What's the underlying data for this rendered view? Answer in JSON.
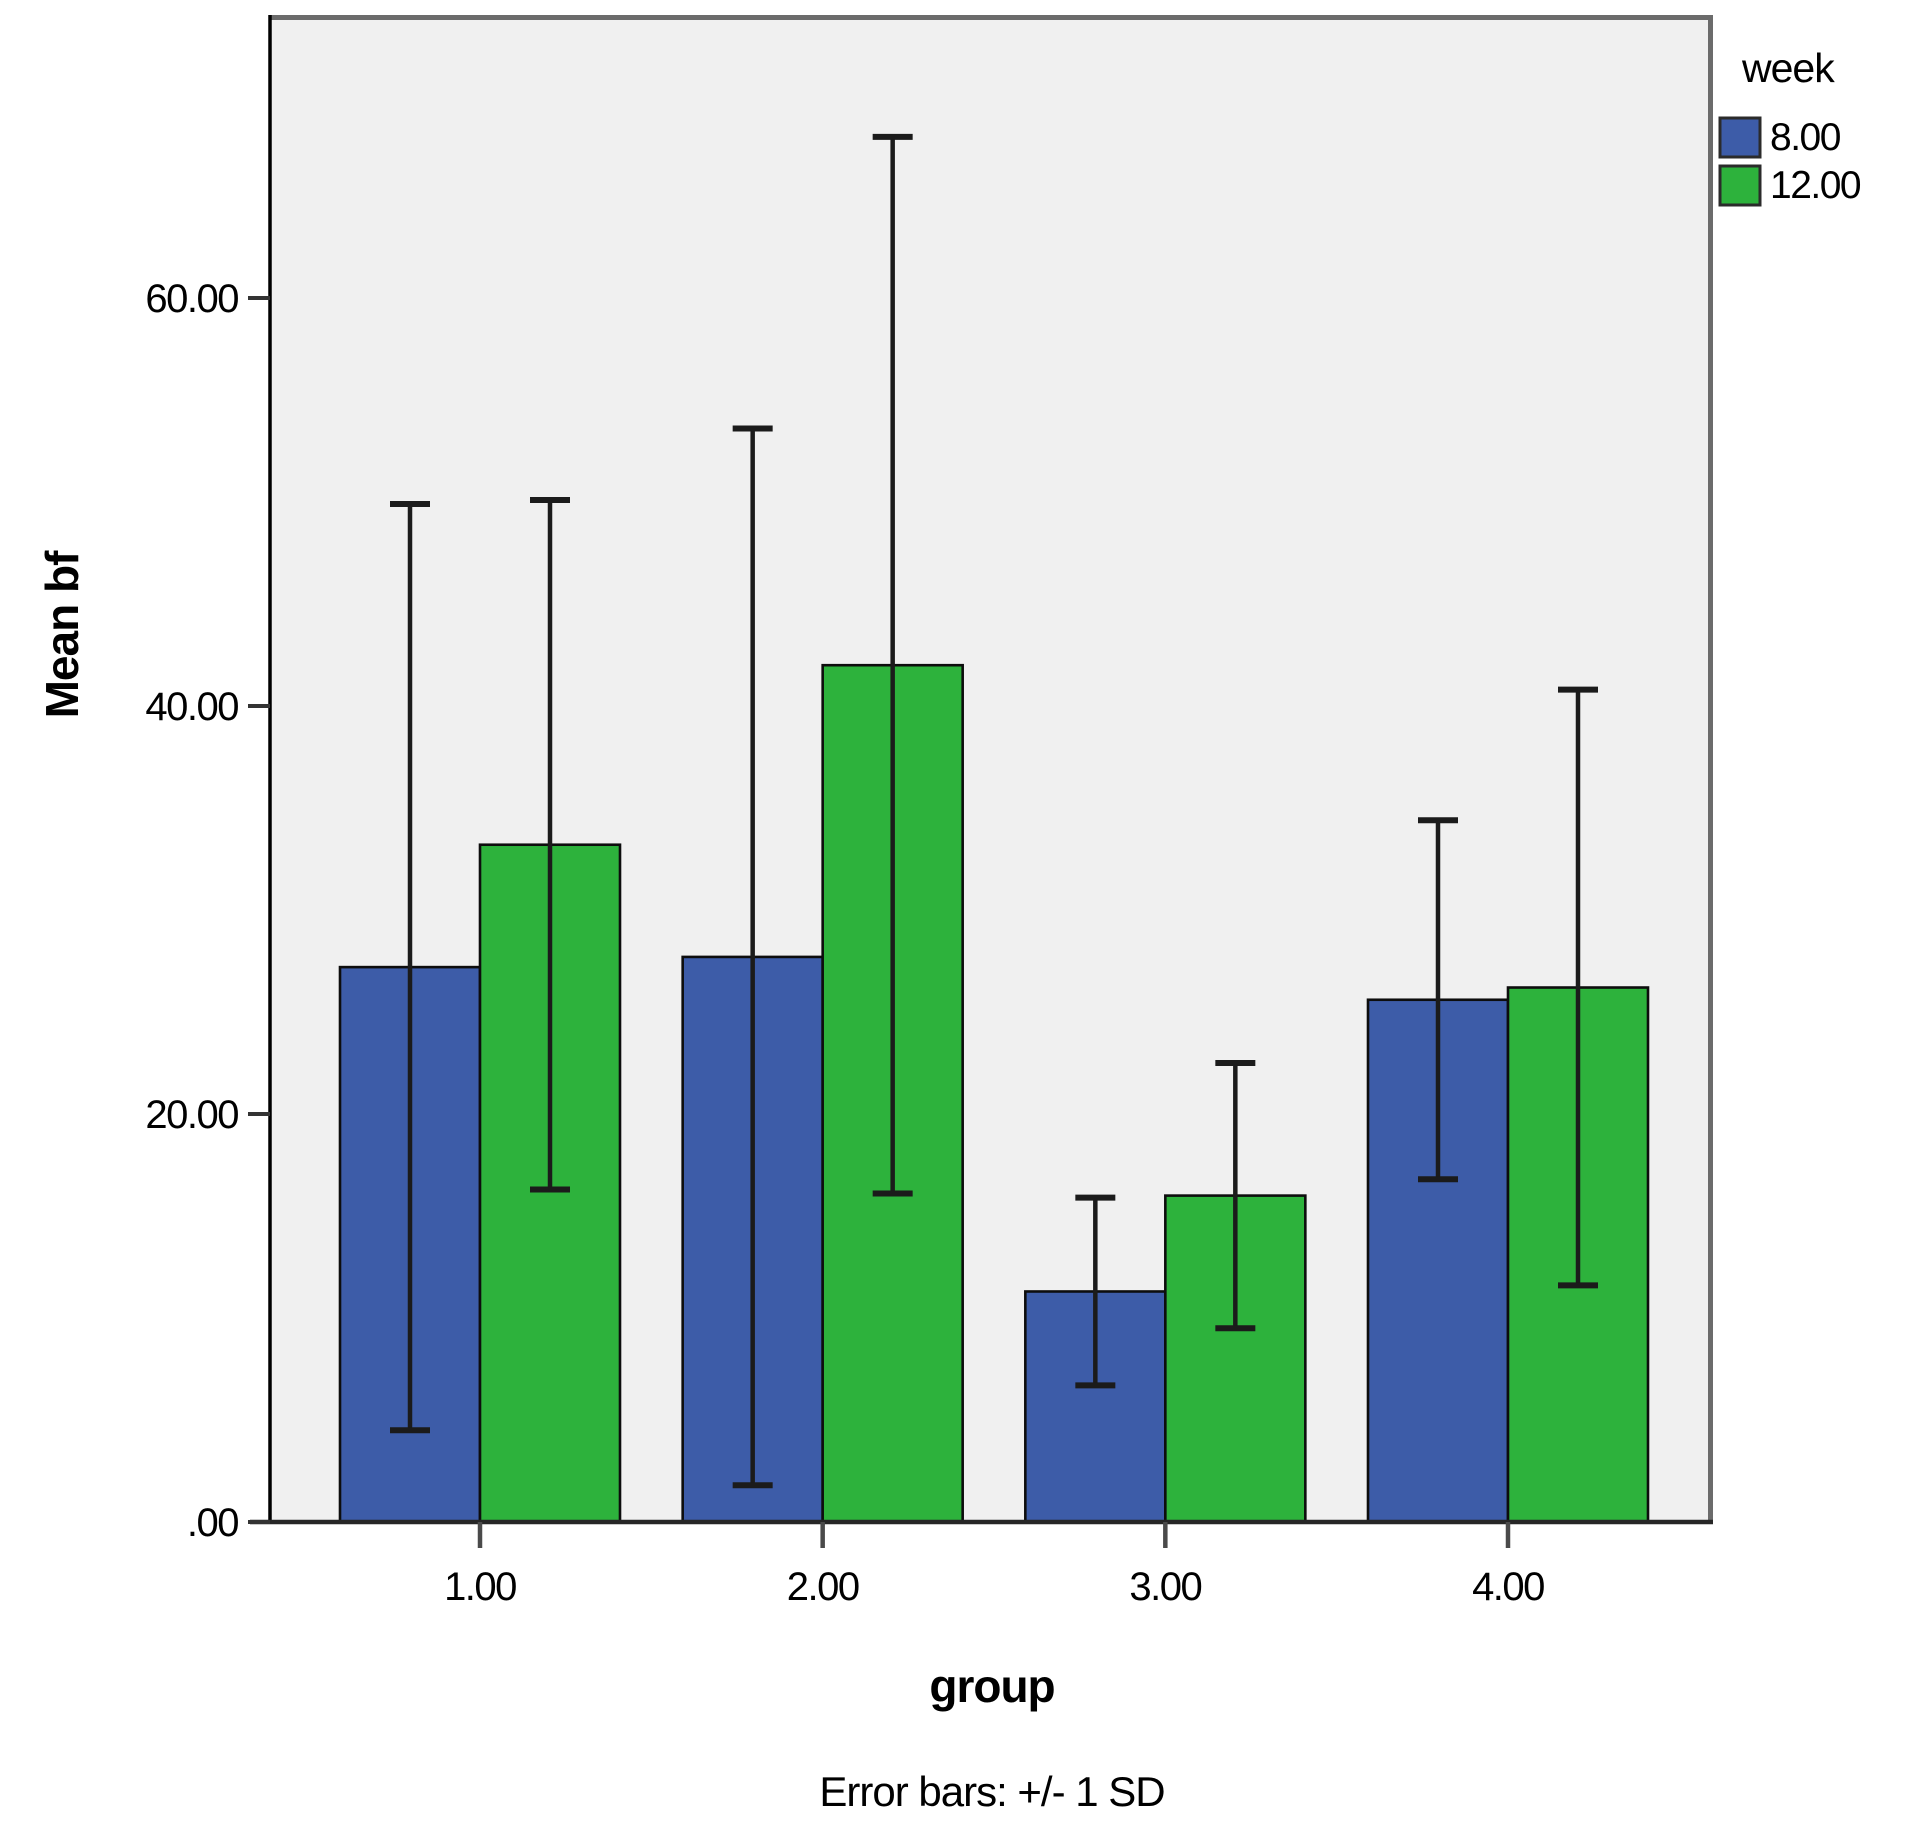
{
  "figure": {
    "y_axis_title": "Mean bf",
    "x_axis_title": "group",
    "caption": "Error bars: +/- 1 SD",
    "legend_title": "week"
  },
  "chart_data": {
    "type": "bar",
    "title": "",
    "xlabel": "group",
    "ylabel": "Mean bf",
    "categories": [
      "1.00",
      "2.00",
      "3.00",
      "4.00"
    ],
    "series": [
      {
        "name": "8.00",
        "color": "#3D5CA8",
        "means": [
          27.2,
          27.7,
          11.3,
          25.6
        ],
        "sd": [
          22.7,
          25.9,
          4.6,
          8.8
        ]
      },
      {
        "name": "12.00",
        "color": "#2DB23C",
        "means": [
          33.2,
          42.0,
          16.0,
          26.2
        ],
        "sd": [
          16.9,
          25.9,
          6.5,
          14.6
        ]
      }
    ],
    "error_bars": "+/- 1 SD",
    "y_ticks": [
      {
        "label": ".00",
        "value": 0
      },
      {
        "label": "20.00",
        "value": 20
      },
      {
        "label": "40.00",
        "value": 40
      },
      {
        "label": "60.00",
        "value": 60
      }
    ],
    "ylim": [
      0,
      73.9
    ],
    "grid": false,
    "legend_position": "top-right",
    "plot_background": "#F0F0F0",
    "bar_border_color": "#0d0d0d",
    "error_bar_color": "#1b1b1b"
  }
}
